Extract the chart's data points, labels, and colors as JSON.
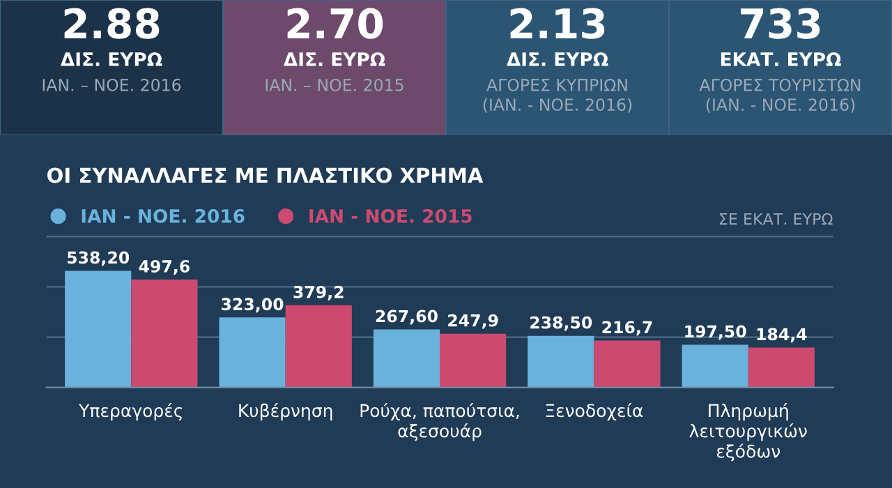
{
  "chart_data": [
    {
      "type": "other",
      "title": "2.88",
      "subtitle": "ΔΙΣ. ΕΥΡΩ",
      "annotations": [
        "ΙΑΝ. – ΝΟΕ. 2016"
      ],
      "color": "#1c3249"
    },
    {
      "type": "other",
      "title": "2.70",
      "subtitle": "ΔΙΣ. ΕΥΡΩ",
      "annotations": [
        "ΙΑΝ. – ΝΟΕ. 2015"
      ],
      "color": "#6d4a6b"
    },
    {
      "type": "other",
      "title": "2.13",
      "subtitle": "ΔΙΣ. ΕΥΡΩ",
      "annotations": [
        "ΑΓΟΡΕΣ ΚΥΠΡΙΩΝ\n(ΙΑΝ. - ΝΟΕ. 2016)"
      ],
      "color": "#2b5573"
    },
    {
      "type": "other",
      "title": "733",
      "subtitle": "ΕΚΑΤ. ΕΥΡΩ",
      "annotations": [
        "ΑΓΟΡΕΣ ΤΟΥΡΙΣΤΩΝ\n(ΙΑΝ. - ΝΟΕ. 2016)"
      ],
      "color": "#2b5573"
    },
    {
      "type": "bar",
      "title": "ΟΙ ΣΥΝΑΛΛΑΓΕΣ ΜΕ ΠΛΑΣΤΙΚΟ ΧΡΗΜΑ",
      "ylabel": "ΣΕ ΕΚΑΤ. ΕΥΡΩ",
      "categories": [
        "Υπεραγορές",
        "Κυβέρνηση",
        "Ρούχα, παπούτσια,\nαξεσουάρ",
        "Ξενοδοχεία",
        "Πληρωμή\nλειτουργικών\nεξόδων"
      ],
      "series": [
        {
          "name": "ΙΑΝ - ΝΟΕ. 2016",
          "color": "#6ab2dc",
          "values": [
            538.2,
            323.0,
            267.6,
            238.5,
            197.5
          ],
          "value_labels": [
            "538,20",
            "323,00",
            "267,60",
            "238,50",
            "197,50"
          ]
        },
        {
          "name": "ΙΑΝ - ΝΟΕ. 2015",
          "color": "#cc4a70",
          "values": [
            497.6,
            379.2,
            247.9,
            216.7,
            184.4
          ],
          "value_labels": [
            "497,6",
            "379,2",
            "247,9",
            "216,7",
            "184,4"
          ]
        }
      ],
      "ylim": [
        0,
        700
      ],
      "yticks": [
        {
          "value": 0,
          "label": null
        },
        {
          "value": 232,
          "label": null
        },
        {
          "value": 464,
          "label": null
        },
        {
          "value": 696,
          "label": null
        }
      ],
      "grid": "y",
      "legend": "top left"
    }
  ]
}
